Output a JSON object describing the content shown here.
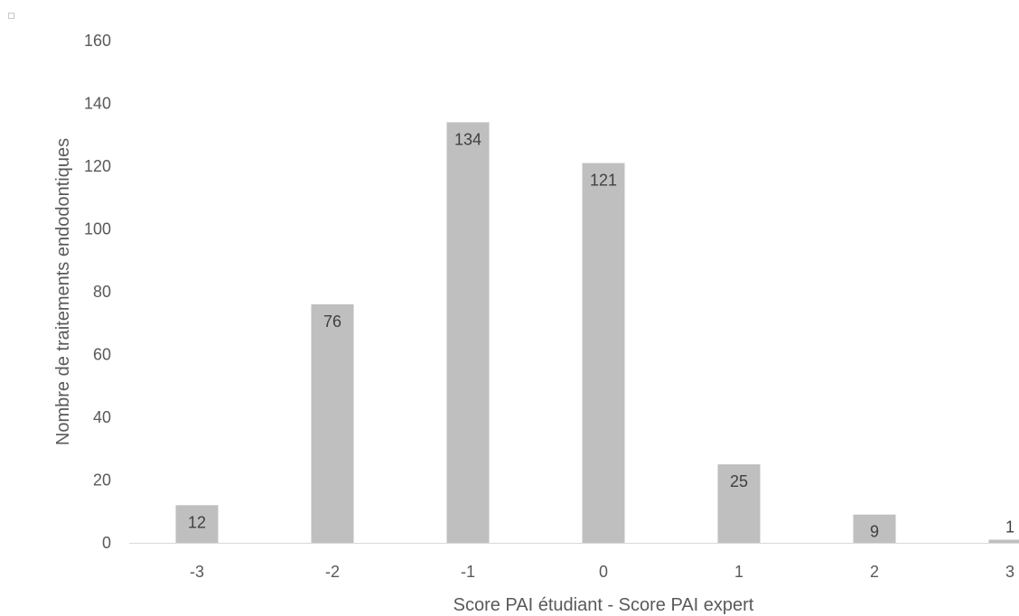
{
  "chart_data": {
    "type": "bar",
    "categories": [
      "-3",
      "-2",
      "-1",
      "0",
      "1",
      "2",
      "3"
    ],
    "values": [
      12,
      76,
      134,
      121,
      25,
      9,
      1
    ],
    "data_labels": [
      "12",
      "76",
      "134",
      "121",
      "25",
      "9",
      "1"
    ],
    "title": "",
    "xlabel": "Score PAI étudiant - Score PAI expert",
    "ylabel": "Nombre de traitements endodontiques",
    "ylim": [
      0,
      160
    ],
    "yticks": [
      0,
      20,
      40,
      60,
      80,
      100,
      120,
      140,
      160
    ],
    "ytick_labels": [
      "0",
      "20",
      "40",
      "60",
      "80",
      "100",
      "120",
      "140",
      "160"
    ],
    "grid": false,
    "legend": "none",
    "colors": {
      "bar": "#bfbfbf",
      "text": "#595959",
      "data_label": "#404040",
      "axis": "#d9d9d9"
    }
  }
}
